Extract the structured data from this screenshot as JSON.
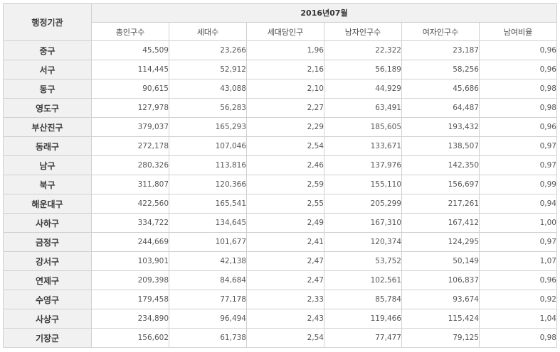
{
  "table": {
    "corner_header": "행정기관",
    "period": "2016년07월",
    "columns": [
      "총인구수",
      "세대수",
      "세대당인구",
      "남자인구수",
      "여자인구수",
      "남여비율"
    ],
    "rows": [
      {
        "region": "중구",
        "values": [
          "45,509",
          "23,266",
          "1,96",
          "22,322",
          "23,187",
          "0,96"
        ]
      },
      {
        "region": "서구",
        "values": [
          "114,445",
          "52,912",
          "2,16",
          "56,189",
          "58,256",
          "0,96"
        ]
      },
      {
        "region": "동구",
        "values": [
          "90,615",
          "43,088",
          "2,10",
          "44,929",
          "45,686",
          "0,98"
        ]
      },
      {
        "region": "영도구",
        "values": [
          "127,978",
          "56,283",
          "2,27",
          "63,491",
          "64,487",
          "0,98"
        ]
      },
      {
        "region": "부산진구",
        "values": [
          "379,037",
          "165,293",
          "2,29",
          "185,605",
          "193,432",
          "0,96"
        ]
      },
      {
        "region": "동래구",
        "values": [
          "272,178",
          "107,046",
          "2,54",
          "133,671",
          "138,507",
          "0,97"
        ]
      },
      {
        "region": "남구",
        "values": [
          "280,326",
          "113,816",
          "2,46",
          "137,976",
          "142,350",
          "0,97"
        ]
      },
      {
        "region": "북구",
        "values": [
          "311,807",
          "120,366",
          "2,59",
          "155,110",
          "156,697",
          "0,99"
        ]
      },
      {
        "region": "해운대구",
        "values": [
          "422,560",
          "165,541",
          "2,55",
          "205,299",
          "217,261",
          "0,94"
        ]
      },
      {
        "region": "사하구",
        "values": [
          "334,722",
          "134,645",
          "2,49",
          "167,310",
          "167,412",
          "1,00"
        ]
      },
      {
        "region": "금정구",
        "values": [
          "244,669",
          "101,677",
          "2,41",
          "120,374",
          "124,295",
          "0,97"
        ]
      },
      {
        "region": "강서구",
        "values": [
          "103,901",
          "42,138",
          "2,47",
          "53,752",
          "50,149",
          "1,07"
        ]
      },
      {
        "region": "연제구",
        "values": [
          "209,398",
          "84,684",
          "2,47",
          "102,561",
          "106,837",
          "0,96"
        ]
      },
      {
        "region": "수영구",
        "values": [
          "179,458",
          "77,178",
          "2,33",
          "85,784",
          "93,674",
          "0,92"
        ]
      },
      {
        "region": "사상구",
        "values": [
          "234,890",
          "96,494",
          "2,43",
          "119,466",
          "115,424",
          "1,04"
        ]
      },
      {
        "region": "기장군",
        "values": [
          "156,602",
          "61,738",
          "2,54",
          "77,477",
          "79,125",
          "0,98"
        ]
      }
    ]
  }
}
